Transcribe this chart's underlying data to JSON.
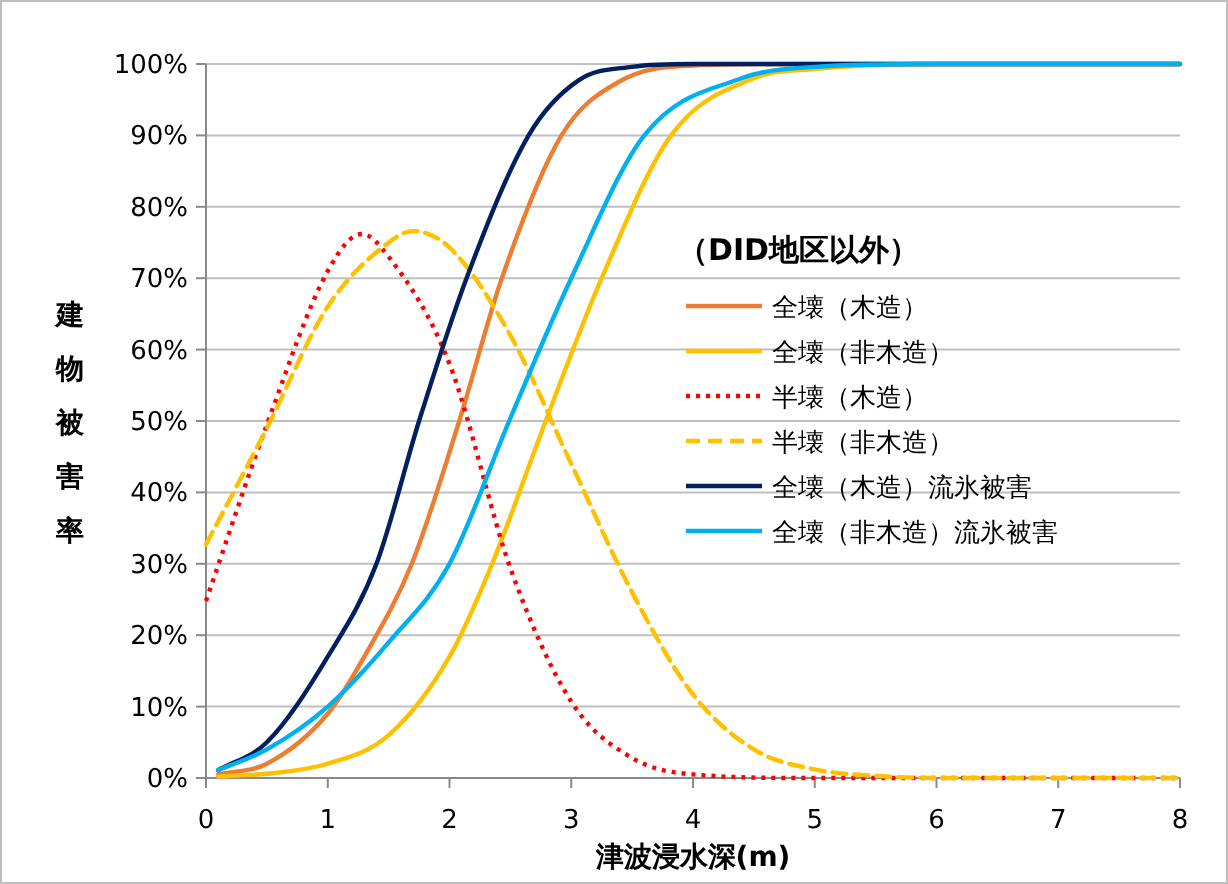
{
  "chart_data": {
    "type": "line",
    "xlabel": "津波浸水深(m)",
    "ylabel": "建物被害率",
    "legend_title": "（DID地区以外）",
    "legend": "right",
    "grid": "y",
    "marker": "none",
    "xlim": [
      0,
      8
    ],
    "xticks": [
      0,
      1,
      2,
      3,
      4,
      5,
      6,
      7,
      8
    ],
    "ylim": [
      0,
      100
    ],
    "yticks": [
      {
        "value": 0,
        "label": "0%"
      },
      {
        "value": 10,
        "label": "10%"
      },
      {
        "value": 20,
        "label": "20%"
      },
      {
        "value": 30,
        "label": "30%"
      },
      {
        "value": 40,
        "label": "40%"
      },
      {
        "value": 50,
        "label": "50%"
      },
      {
        "value": 60,
        "label": "60%"
      },
      {
        "value": 70,
        "label": "70%"
      },
      {
        "value": 80,
        "label": "80%"
      },
      {
        "value": 90,
        "label": "90%"
      },
      {
        "value": 100,
        "label": "100%"
      }
    ],
    "series": [
      {
        "name": "全壊（木造）",
        "color": "#ed7d31",
        "line_style": "solid",
        "x": [
          0.1,
          0.5,
          1,
          1.3,
          1.69,
          2.08,
          2.43,
          2.92,
          3.39,
          4,
          5,
          8
        ],
        "values": [
          0.5,
          2,
          9,
          17,
          30,
          50,
          70,
          90,
          97.5,
          99.8,
          100,
          100
        ]
      },
      {
        "name": "全壊（非木造）",
        "color": "#ffc000",
        "line_style": "solid",
        "x": [
          0.1,
          0.5,
          1,
          1.5,
          2,
          2.35,
          2.79,
          3.25,
          3.82,
          4.5,
          5,
          6,
          8
        ],
        "values": [
          0.2,
          0.6,
          2,
          6,
          17,
          30,
          50,
          70,
          90,
          98,
          99.3,
          100,
          100
        ]
      },
      {
        "name": "半壊（木造）",
        "color": "#ff0000",
        "line_style": "dotted",
        "x": [
          0,
          0.5,
          1,
          1.28,
          1.5,
          2,
          2.5,
          3,
          3.5,
          4,
          5,
          8
        ],
        "values": [
          24.8,
          49.5,
          71,
          76.2,
          73,
          58,
          29.4,
          10.7,
          2.8,
          0.5,
          0,
          0
        ]
      },
      {
        "name": "半壊（非木造）",
        "color": "#ffc000",
        "line_style": "dashed",
        "x": [
          0,
          0.5,
          1,
          1.5,
          1.7,
          2,
          2.5,
          3,
          3.5,
          4,
          4.5,
          5,
          5.5,
          6,
          8
        ],
        "values": [
          32.7,
          49,
          66,
          75,
          76.6,
          74.3,
          62,
          44,
          26,
          11.7,
          4,
          1.2,
          0.3,
          0,
          0
        ]
      },
      {
        "name": "全壊（木造）流氷被害",
        "color": "#002060",
        "line_style": "solid",
        "x": [
          0.1,
          0.5,
          1,
          1.4,
          1.75,
          2.14,
          2.65,
          3.06,
          3.5,
          4,
          8
        ],
        "values": [
          1.1,
          5,
          17,
          30,
          50,
          70,
          90,
          97.7,
          99.6,
          100,
          100
        ]
      },
      {
        "name": "全壊（非木造）流氷被害",
        "color": "#00b0f0",
        "line_style": "solid",
        "x": [
          0.1,
          0.5,
          1,
          1.5,
          2,
          2.49,
          3,
          3.6,
          4.4,
          5,
          6,
          8
        ],
        "values": [
          1.1,
          4,
          10,
          19,
          30,
          50,
          70,
          90,
          98,
          99.6,
          100,
          100
        ]
      }
    ]
  }
}
